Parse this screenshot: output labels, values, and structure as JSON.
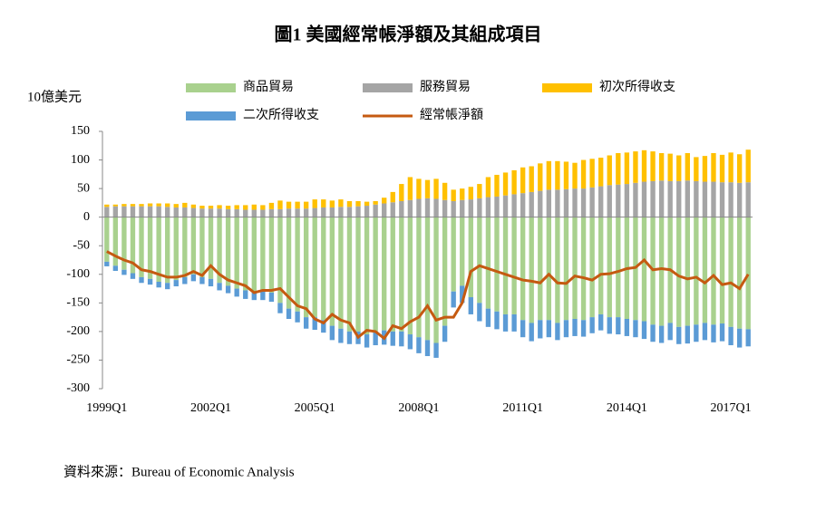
{
  "chart_data": {
    "type": "bar",
    "stacked": true,
    "title": "圖1 美國經常帳淨額及其組成項目",
    "y_label": "10億美元",
    "source": "資料來源：Bureau of Economic Analysis",
    "categories": [
      "1999Q1",
      null,
      null,
      null,
      null,
      null,
      null,
      null,
      null,
      null,
      null,
      null,
      "2002Q1",
      null,
      null,
      null,
      null,
      null,
      null,
      null,
      null,
      null,
      null,
      null,
      "2005Q1",
      null,
      null,
      null,
      null,
      null,
      null,
      null,
      null,
      null,
      null,
      null,
      "2008Q1",
      null,
      null,
      null,
      null,
      null,
      null,
      null,
      null,
      null,
      null,
      null,
      "2011Q1",
      null,
      null,
      null,
      null,
      null,
      null,
      null,
      null,
      null,
      null,
      null,
      "2014Q1",
      null,
      null,
      null,
      null,
      null,
      null,
      null,
      null,
      null,
      null,
      null,
      "2017Q1",
      null,
      null
    ],
    "ylim": [
      -300,
      150
    ],
    "yticks": [
      -300,
      -250,
      -200,
      -150,
      -100,
      -50,
      0,
      50,
      100,
      150
    ],
    "series": [
      {
        "name": "商品貿易",
        "type": "bar",
        "color": "#a9d18e",
        "values": [
          -78,
          -85,
          -92,
          -98,
          -105,
          -108,
          -113,
          -115,
          -110,
          -105,
          -100,
          -105,
          -108,
          -115,
          -120,
          -125,
          -128,
          -130,
          -130,
          -132,
          -150,
          -160,
          -165,
          -175,
          -175,
          -180,
          -190,
          -195,
          -200,
          -200,
          -205,
          -200,
          -198,
          -200,
          -200,
          -205,
          -210,
          -215,
          -220,
          -190,
          -130,
          -120,
          -140,
          -150,
          -160,
          -165,
          -170,
          -170,
          -180,
          -185,
          -180,
          -180,
          -185,
          -180,
          -178,
          -180,
          -175,
          -170,
          -175,
          -175,
          -178,
          -180,
          -182,
          -188,
          -190,
          -185,
          -192,
          -190,
          -188,
          -185,
          -188,
          -186,
          -192,
          -195,
          -196
        ]
      },
      {
        "name": "服務貿易",
        "type": "bar",
        "color": "#a5a5a5",
        "values": [
          18,
          19,
          19,
          19,
          19,
          19,
          19,
          18,
          17,
          17,
          16,
          15,
          15,
          15,
          14,
          14,
          13,
          13,
          13,
          14,
          14,
          15,
          15,
          15,
          16,
          17,
          17,
          18,
          18,
          19,
          20,
          22,
          24,
          26,
          28,
          30,
          32,
          33,
          32,
          30,
          28,
          30,
          31,
          33,
          35,
          36,
          38,
          40,
          42,
          44,
          46,
          48,
          48,
          49,
          50,
          50,
          52,
          54,
          56,
          57,
          58,
          60,
          62,
          63,
          64,
          63,
          63,
          64,
          63,
          62,
          62,
          61,
          61,
          60,
          61
        ]
      },
      {
        "name": "初次所得收支",
        "type": "bar",
        "color": "#ffc000",
        "values": [
          4,
          3,
          4,
          4,
          4,
          5,
          5,
          6,
          6,
          8,
          6,
          5,
          5,
          6,
          6,
          7,
          8,
          9,
          8,
          11,
          15,
          12,
          12,
          12,
          15,
          14,
          12,
          13,
          10,
          9,
          7,
          6,
          10,
          18,
          30,
          40,
          35,
          32,
          35,
          30,
          20,
          20,
          22,
          25,
          35,
          38,
          40,
          42,
          45,
          45,
          48,
          50,
          50,
          48,
          45,
          50,
          50,
          50,
          52,
          55,
          55,
          55,
          55,
          52,
          48,
          48,
          45,
          48,
          42,
          45,
          50,
          48,
          52,
          50,
          57
        ]
      },
      {
        "name": "二次所得收支",
        "type": "bar",
        "color": "#5b9bd5",
        "values": [
          -8,
          -9,
          -9,
          -10,
          -10,
          -10,
          -10,
          -11,
          -11,
          -12,
          -12,
          -12,
          -13,
          -13,
          -13,
          -14,
          -15,
          -15,
          -15,
          -16,
          -18,
          -18,
          -19,
          -20,
          -22,
          -22,
          -25,
          -25,
          -22,
          -22,
          -23,
          -24,
          -25,
          -25,
          -26,
          -26,
          -28,
          -28,
          -26,
          -28,
          -28,
          -30,
          -30,
          -32,
          -32,
          -31,
          -30,
          -30,
          -30,
          -32,
          -32,
          -30,
          -30,
          -30,
          -30,
          -29,
          -28,
          -28,
          -29,
          -30,
          -30,
          -30,
          -31,
          -30,
          -30,
          -30,
          -30,
          -31,
          -30,
          -30,
          -31,
          -31,
          -32,
          -33,
          -30
        ]
      },
      {
        "name": "經常帳淨額",
        "type": "line",
        "color": "#c55a11",
        "values": [
          -60,
          -68,
          -75,
          -80,
          -92,
          -95,
          -100,
          -105,
          -105,
          -102,
          -95,
          -102,
          -85,
          -100,
          -110,
          -115,
          -120,
          -132,
          -128,
          -128,
          -125,
          -140,
          -155,
          -160,
          -178,
          -185,
          -170,
          -180,
          -185,
          -210,
          -198,
          -200,
          -212,
          -190,
          -195,
          -183,
          -175,
          -155,
          -180,
          -175,
          -175,
          -150,
          -95,
          -85,
          -90,
          -95,
          -100,
          -105,
          -110,
          -112,
          -115,
          -100,
          -115,
          -116,
          -103,
          -106,
          -110,
          -100,
          -99,
          -95,
          -90,
          -88,
          -75,
          -92,
          -90,
          -92,
          -103,
          -108,
          -105,
          -115,
          -102,
          -118,
          -115,
          -125,
          -100
        ]
      }
    ]
  }
}
